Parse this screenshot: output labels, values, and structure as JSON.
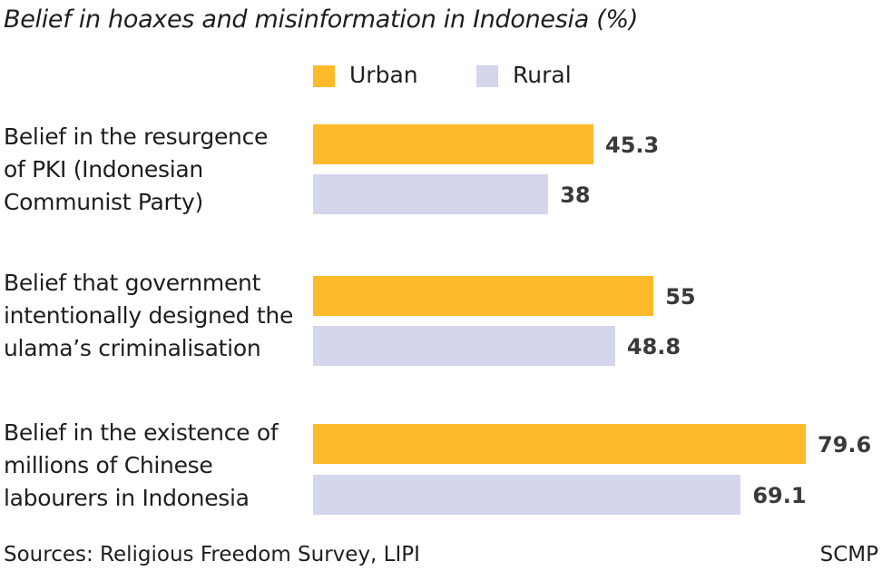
{
  "chart_data": {
    "type": "bar",
    "orientation": "horizontal",
    "title": "Belief in hoaxes and misinformation in Indonesia (%)",
    "categories": [
      [
        "Belief in the resurgence",
        "of PKI (Indonesian",
        "Communist Party)"
      ],
      [
        "Belief that government",
        "intentionally designed the",
        "ulama’s criminalisation"
      ],
      [
        "Belief in the existence of",
        "millions of Chinese",
        "labourers in Indonesia"
      ]
    ],
    "series": [
      {
        "name": "Urban",
        "color": "#FDBB2B",
        "values": [
          45.3,
          55,
          79.6
        ],
        "labels": [
          "45.3",
          "55",
          "79.6"
        ]
      },
      {
        "name": "Rural",
        "color": "#D4D6EC",
        "values": [
          38,
          48.8,
          69.1
        ],
        "labels": [
          "38",
          "48.8",
          "69.1"
        ]
      }
    ],
    "xlim": [
      0,
      100
    ],
    "legend_position": "top",
    "grid": false
  },
  "footer": {
    "source": "Sources: Religious Freedom Survey, LIPI",
    "brand": "SCMP"
  }
}
